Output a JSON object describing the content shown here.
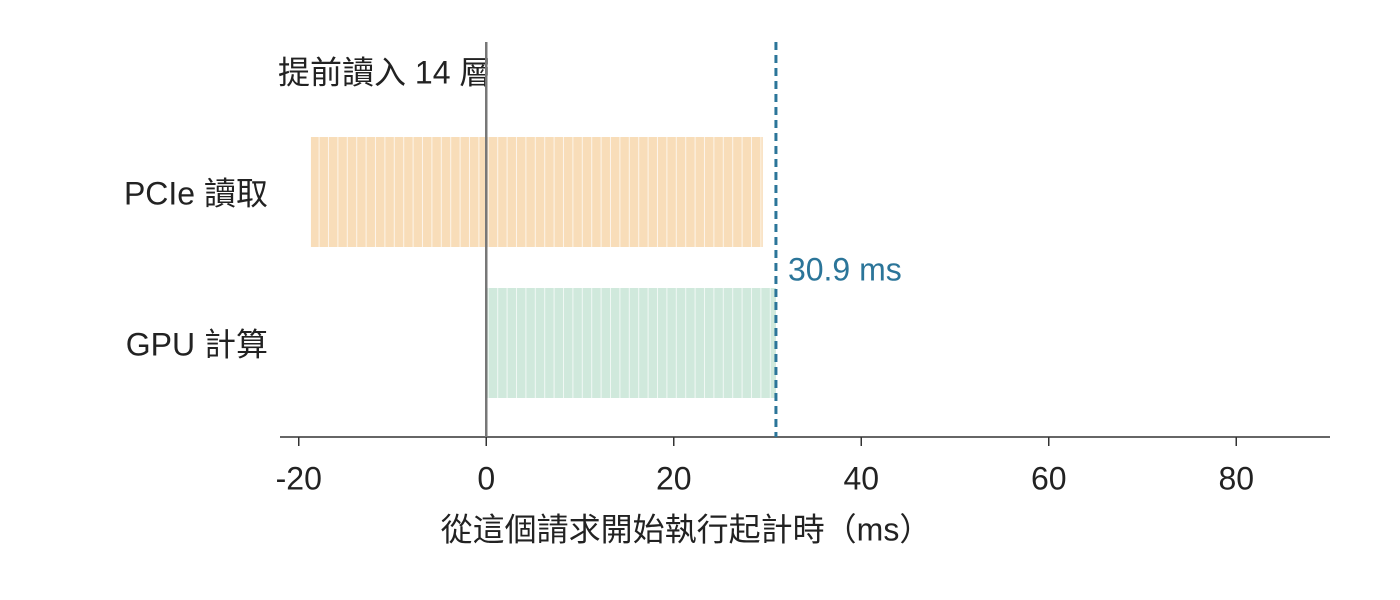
{
  "chart_data": {
    "type": "range-bar",
    "categories": [
      "PCIe 讀取",
      "GPU 計算"
    ],
    "starts": [
      -18.7,
      0
    ],
    "ends": [
      29.5,
      30.9
    ],
    "colors": [
      "#f8ddb9",
      "#d0e9dc"
    ],
    "annotation": "提前讀入 14 層",
    "vline": {
      "value": 30.9,
      "label": "30.9 ms",
      "color": "#2b7599"
    },
    "xlabel": "從這個請求開始執行起計時（ms）",
    "xlim": [
      -22,
      90
    ],
    "xticks": [
      -20,
      0,
      20,
      40,
      60,
      80
    ]
  }
}
